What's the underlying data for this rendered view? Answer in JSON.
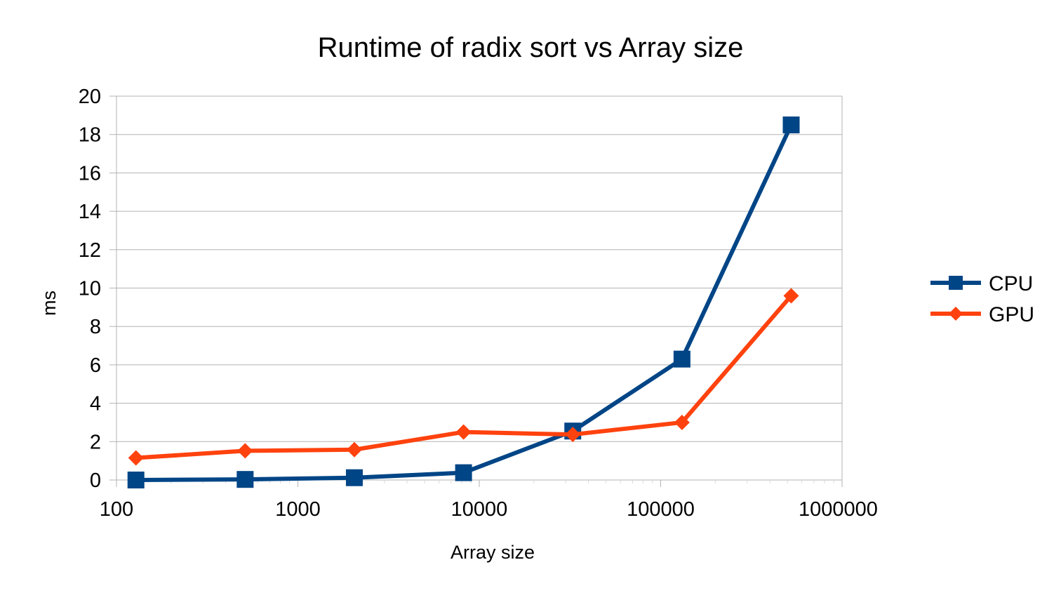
{
  "chart_data": {
    "type": "line",
    "title": "Runtime of radix sort vs Array size",
    "xlabel": "Array size",
    "ylabel": "ms",
    "x_scale": "log",
    "xlim": [
      100,
      1000000
    ],
    "ylim": [
      0,
      20
    ],
    "x_ticks": [
      "100",
      "1000",
      "10000",
      "100000",
      "1000000"
    ],
    "y_ticks": [
      "0",
      "2",
      "4",
      "6",
      "8",
      "10",
      "12",
      "14",
      "16",
      "18",
      "20"
    ],
    "grid": "horizontal",
    "legend_position": "right",
    "x": [
      128,
      512,
      2048,
      8192,
      32768,
      131072,
      524288
    ],
    "series": [
      {
        "name": "CPU",
        "color": "#004586",
        "marker": "square",
        "values": [
          0.0,
          0.03,
          0.12,
          0.38,
          2.55,
          6.3,
          18.5
        ]
      },
      {
        "name": "GPU",
        "color": "#ff420e",
        "marker": "diamond",
        "values": [
          1.15,
          1.52,
          1.58,
          2.5,
          2.37,
          3.0,
          9.6
        ]
      }
    ]
  }
}
